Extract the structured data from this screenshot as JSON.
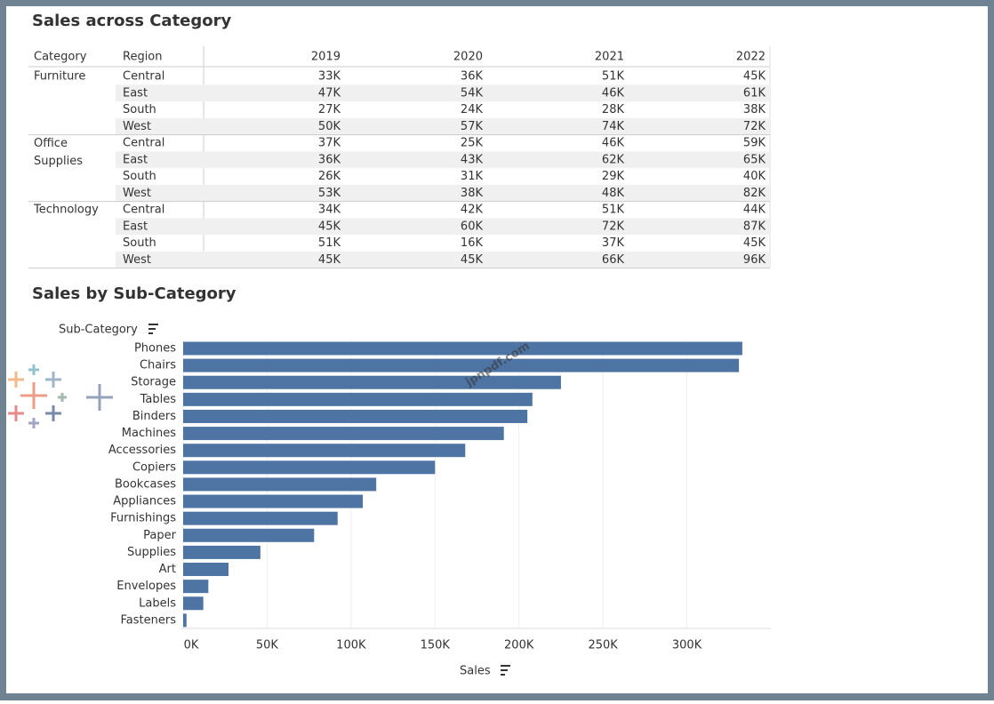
{
  "table": {
    "title": "Sales across Category",
    "headers": [
      "Category",
      "Region",
      "2019",
      "2020",
      "2021",
      "2022"
    ],
    "groups": [
      {
        "category": "Furniture",
        "rows": [
          [
            "Central",
            "33K",
            "36K",
            "51K",
            "45K"
          ],
          [
            "East",
            "47K",
            "54K",
            "46K",
            "61K"
          ],
          [
            "South",
            "27K",
            "24K",
            "28K",
            "38K"
          ],
          [
            "West",
            "50K",
            "57K",
            "74K",
            "72K"
          ]
        ]
      },
      {
        "category": "Office Supplies",
        "rows": [
          [
            "Central",
            "37K",
            "25K",
            "46K",
            "59K"
          ],
          [
            "East",
            "36K",
            "43K",
            "62K",
            "65K"
          ],
          [
            "South",
            "26K",
            "31K",
            "29K",
            "40K"
          ],
          [
            "West",
            "53K",
            "38K",
            "48K",
            "82K"
          ]
        ]
      },
      {
        "category": "Technology",
        "rows": [
          [
            "Central",
            "34K",
            "42K",
            "51K",
            "44K"
          ],
          [
            "East",
            "45K",
            "60K",
            "72K",
            "87K"
          ],
          [
            "South",
            "51K",
            "16K",
            "37K",
            "45K"
          ],
          [
            "West",
            "45K",
            "45K",
            "66K",
            "96K"
          ]
        ]
      }
    ]
  },
  "chart_data": {
    "type": "bar",
    "orientation": "horizontal",
    "title": "Sales by Sub-Category",
    "y_label": "Sub-Category",
    "x_label": "Sales",
    "categories": [
      "Phones",
      "Chairs",
      "Storage",
      "Tables",
      "Binders",
      "Machines",
      "Accessories",
      "Copiers",
      "Bookcases",
      "Appliances",
      "Furnishings",
      "Paper",
      "Supplies",
      "Art",
      "Envelopes",
      "Labels",
      "Fasteners"
    ],
    "values": [
      333000,
      331000,
      225000,
      208000,
      205000,
      191000,
      168000,
      150000,
      115000,
      107000,
      92000,
      78000,
      46000,
      27000,
      15000,
      12000,
      2000
    ],
    "color": "#4e74a3",
    "xlim": [
      0,
      350000
    ],
    "xticks": [
      {
        "value": 0,
        "label": "0K"
      },
      {
        "value": 50000,
        "label": "50K"
      },
      {
        "value": 100000,
        "label": "100K"
      },
      {
        "value": 150000,
        "label": "150K"
      },
      {
        "value": 200000,
        "label": "200K"
      },
      {
        "value": 250000,
        "label": "250K"
      },
      {
        "value": 300000,
        "label": "300K"
      }
    ],
    "grid": true
  },
  "watermark": "jpnpdf.com"
}
